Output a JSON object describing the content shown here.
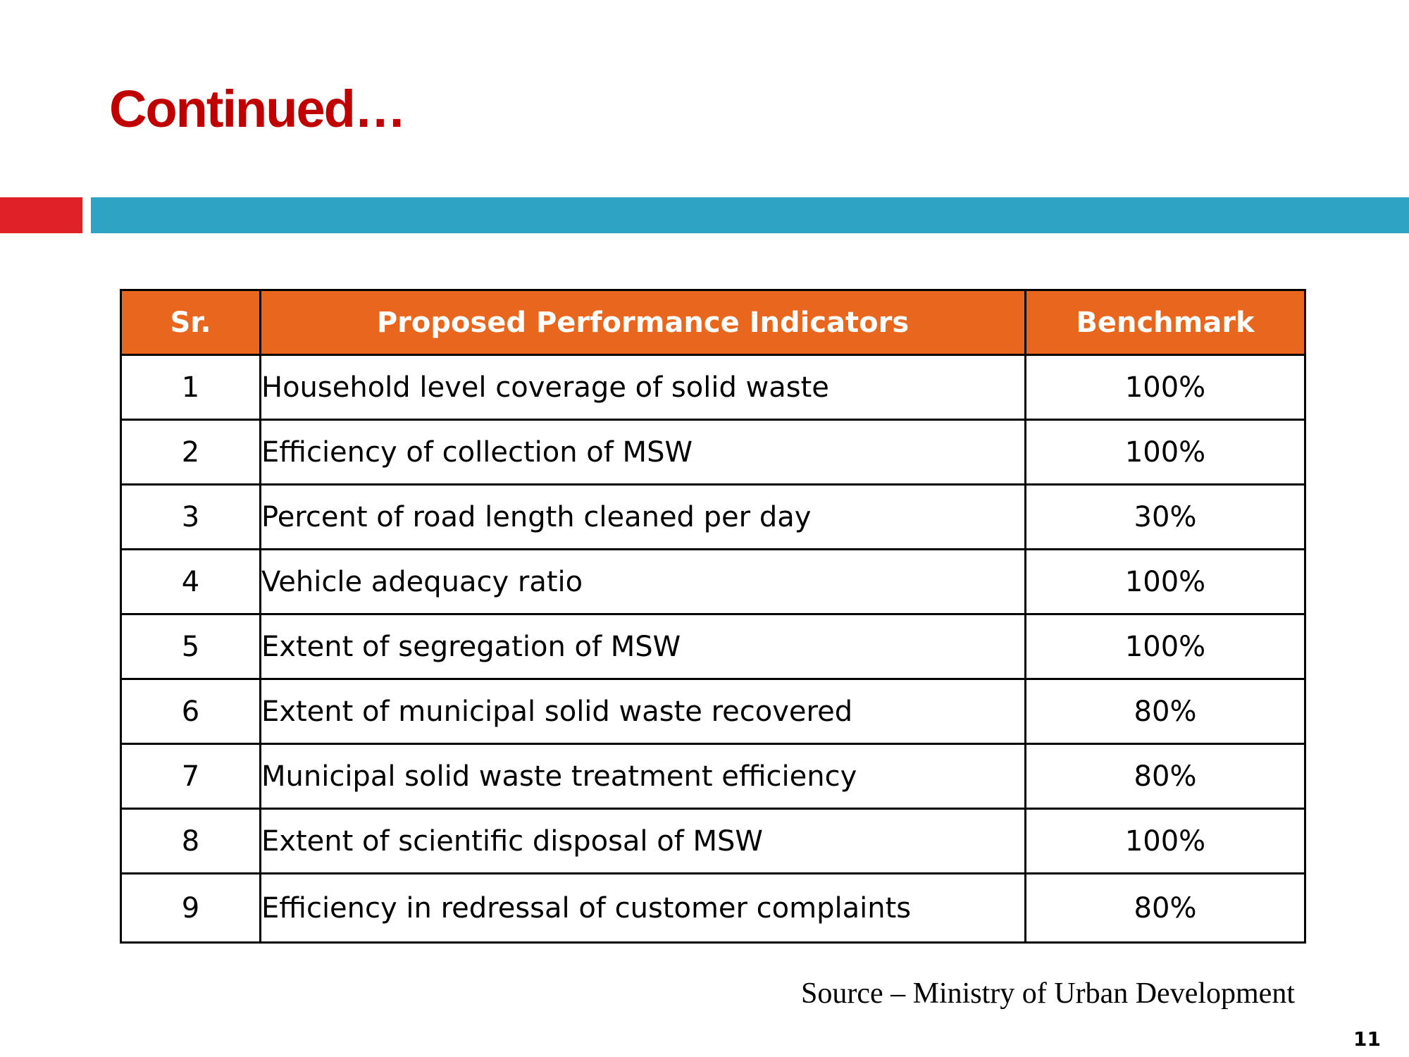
{
  "slide": {
    "title": "Continued…",
    "source": "Source – Ministry of Urban Development",
    "page_number": "11"
  },
  "colors": {
    "title": "#c00000",
    "bar_red": "#e02128",
    "bar_blue": "#2fa3c3",
    "table_header": "#e8661e"
  },
  "table": {
    "headers": [
      "Sr.",
      "Proposed Performance Indicators",
      "Benchmark"
    ],
    "rows": [
      {
        "sr": "1",
        "indicator": "Household level coverage of solid waste",
        "benchmark": "100%"
      },
      {
        "sr": "2",
        "indicator": "Efficiency of collection of MSW",
        "benchmark": "100%"
      },
      {
        "sr": "3",
        "indicator": "Percent of road length cleaned per day",
        "benchmark": "30%"
      },
      {
        "sr": "4",
        "indicator": "Vehicle adequacy ratio",
        "benchmark": "100%"
      },
      {
        "sr": "5",
        "indicator": "Extent of segregation of MSW",
        "benchmark": "100%"
      },
      {
        "sr": "6",
        "indicator": "Extent of municipal solid waste recovered",
        "benchmark": "80%"
      },
      {
        "sr": "7",
        "indicator": "Municipal solid waste treatment efficiency",
        "benchmark": "80%"
      },
      {
        "sr": "8",
        "indicator": "Extent of scientific disposal of MSW",
        "benchmark": "100%"
      },
      {
        "sr": "9",
        "indicator": "Efficiency in redressal of customer complaints",
        "benchmark": "80%"
      }
    ]
  }
}
